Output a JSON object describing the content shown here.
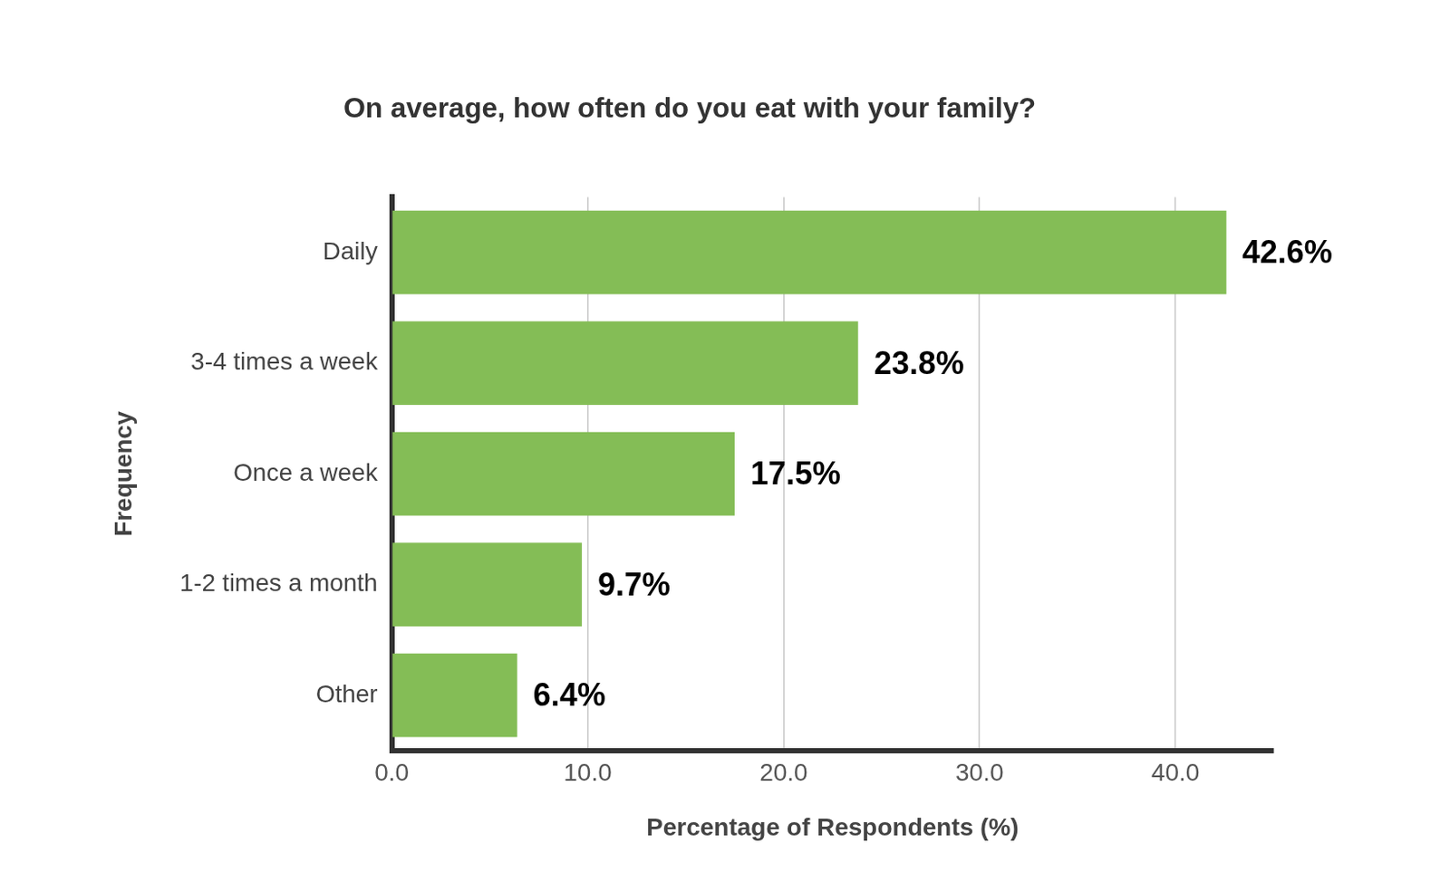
{
  "chart_data": {
    "type": "bar",
    "title": "On average, how often do you eat with your family?",
    "orientation": "horizontal",
    "categories": [
      "Daily",
      "3-4 times a week",
      "Once a week",
      "1-2 times a month",
      "Other"
    ],
    "values": [
      42.6,
      23.8,
      17.5,
      9.7,
      6.4
    ],
    "value_labels": [
      "42.6%",
      "23.8%",
      "17.5%",
      "9.7%",
      "6.4%"
    ],
    "data_labels": true,
    "color": "#84bd56",
    "xlim": [
      0,
      45
    ],
    "xticks": [
      {
        "value": 0,
        "label": "0.0"
      },
      {
        "value": 10,
        "label": "10.0"
      },
      {
        "value": 20,
        "label": "20.0"
      },
      {
        "value": 30,
        "label": "30.0"
      },
      {
        "value": 40,
        "label": "40.0"
      }
    ],
    "xlabel": "Percentage of Respondents (%)",
    "ylabel": "Frequency",
    "grid": true
  }
}
